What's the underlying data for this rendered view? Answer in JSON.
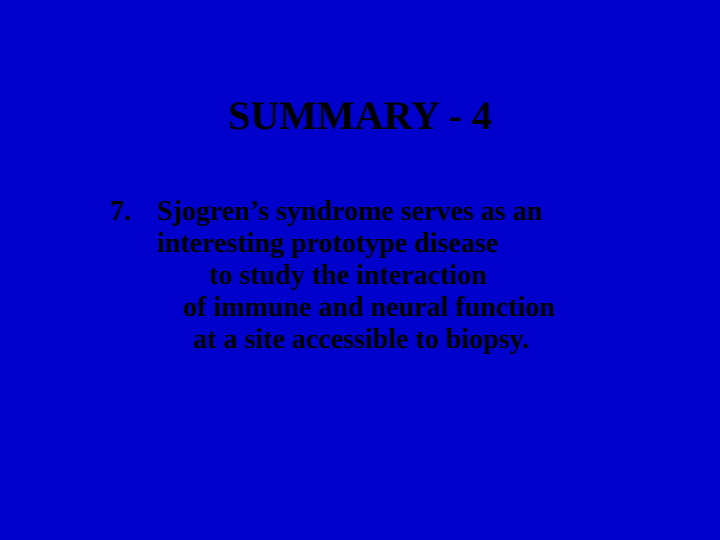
{
  "slide": {
    "background_color": "#0000cc",
    "text_color": "#000000",
    "title": "SUMMARY - 4",
    "title_fontsize": 40,
    "body_fontsize": 28,
    "font_family": "Times New Roman",
    "item": {
      "number": "7.",
      "lines": [
        "Sjogren’s syndrome serves as an",
        "interesting prototype disease",
        "to study the interaction",
        "of immune and neural function",
        "at a site accessible to biopsy."
      ]
    }
  }
}
